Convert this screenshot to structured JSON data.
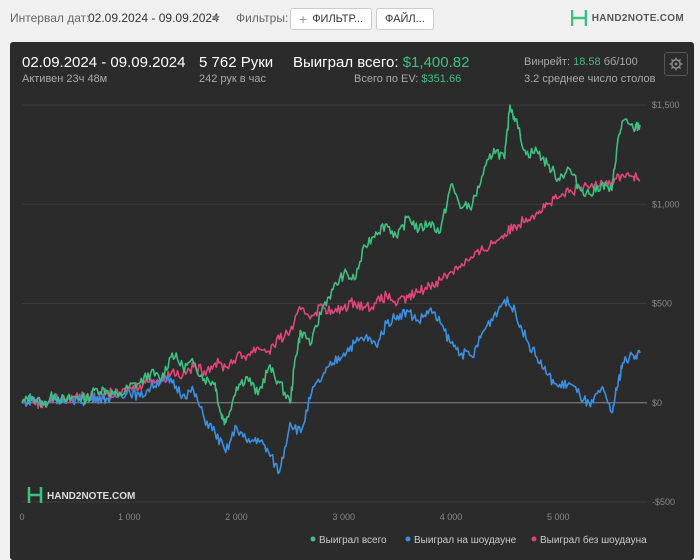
{
  "toolbar": {
    "date_label": "Интервал дат:",
    "date_range": "02.09.2024 - 09.09.2024",
    "filters_label": "Фильтры:",
    "filter_button": "ФИЛЬТР...",
    "file_button": "ФАЙЛ...",
    "brand": "HAND2NOTE.COM"
  },
  "summary": {
    "range": "02.09.2024 - 09.09.2024",
    "active": "Активен 23ч 48м",
    "hands": "5 762 Руки",
    "hands_per_hour": "242 рук в час",
    "won_label": "Выиграл всего:",
    "won_value": "$1,400.82",
    "ev_label": "Всего по EV:",
    "ev_value": "$351.66",
    "winrate_label": "Винрейт:",
    "winrate_value": "18.58",
    "winrate_unit": "бб/100",
    "tables": "3.2 среднее число столов"
  },
  "watermark": "HAND2NOTE.COM",
  "colors": {
    "won": "#3fbf7f",
    "showdown": "#3b8fe0",
    "no_showdown": "#e0457a",
    "panel": "#2b2b2b"
  },
  "chart_data": {
    "type": "line",
    "title": "",
    "xlabel": "",
    "ylabel": "",
    "xlim": [
      0,
      5762
    ],
    "ylim": [
      -500,
      1500
    ],
    "x_ticks": [
      0,
      1000,
      2000,
      3000,
      4000,
      5000
    ],
    "x_tick_labels": [
      "0",
      "1 000",
      "2 000",
      "3 000",
      "4 000",
      "5 000"
    ],
    "y_ticks": [
      -500,
      0,
      500,
      1000,
      1500
    ],
    "y_tick_labels": [
      "-$500",
      "$0",
      "$500",
      "$1,000",
      "$1,500"
    ],
    "legend_position": "bottom-right",
    "grid": true,
    "series": [
      {
        "name": "Выиграл всего",
        "color": "#3fbf7f",
        "points": [
          [
            0,
            0
          ],
          [
            100,
            30
          ],
          [
            200,
            -10
          ],
          [
            300,
            40
          ],
          [
            400,
            10
          ],
          [
            500,
            30
          ],
          [
            600,
            20
          ],
          [
            700,
            70
          ],
          [
            800,
            60
          ],
          [
            900,
            30
          ],
          [
            1000,
            80
          ],
          [
            1100,
            100
          ],
          [
            1200,
            150
          ],
          [
            1300,
            120
          ],
          [
            1400,
            250
          ],
          [
            1500,
            180
          ],
          [
            1600,
            200
          ],
          [
            1700,
            120
          ],
          [
            1800,
            100
          ],
          [
            1850,
            -50
          ],
          [
            1900,
            -100
          ],
          [
            2000,
            80
          ],
          [
            2100,
            130
          ],
          [
            2200,
            40
          ],
          [
            2300,
            180
          ],
          [
            2400,
            100
          ],
          [
            2500,
            0
          ],
          [
            2550,
            230
          ],
          [
            2600,
            360
          ],
          [
            2700,
            300
          ],
          [
            2800,
            480
          ],
          [
            2900,
            570
          ],
          [
            3000,
            650
          ],
          [
            3100,
            620
          ],
          [
            3200,
            790
          ],
          [
            3300,
            860
          ],
          [
            3400,
            900
          ],
          [
            3500,
            830
          ],
          [
            3600,
            940
          ],
          [
            3700,
            870
          ],
          [
            3800,
            910
          ],
          [
            3900,
            860
          ],
          [
            4000,
            1100
          ],
          [
            4100,
            980
          ],
          [
            4200,
            1000
          ],
          [
            4300,
            1150
          ],
          [
            4400,
            1280
          ],
          [
            4500,
            1230
          ],
          [
            4550,
            1500
          ],
          [
            4600,
            1430
          ],
          [
            4700,
            1250
          ],
          [
            4800,
            1270
          ],
          [
            4900,
            1200
          ],
          [
            5000,
            1130
          ],
          [
            5100,
            1180
          ],
          [
            5200,
            1080
          ],
          [
            5300,
            1050
          ],
          [
            5400,
            1100
          ],
          [
            5500,
            1070
          ],
          [
            5550,
            1300
          ],
          [
            5600,
            1420
          ],
          [
            5700,
            1380
          ],
          [
            5762,
            1400
          ]
        ]
      },
      {
        "name": "Выиграл на шоудауне",
        "color": "#3b8fe0",
        "points": [
          [
            0,
            0
          ],
          [
            100,
            20
          ],
          [
            200,
            -10
          ],
          [
            300,
            30
          ],
          [
            400,
            0
          ],
          [
            500,
            20
          ],
          [
            600,
            10
          ],
          [
            700,
            30
          ],
          [
            800,
            20
          ],
          [
            900,
            40
          ],
          [
            1000,
            60
          ],
          [
            1100,
            30
          ],
          [
            1200,
            80
          ],
          [
            1300,
            120
          ],
          [
            1400,
            100
          ],
          [
            1500,
            40
          ],
          [
            1600,
            60
          ],
          [
            1700,
            -80
          ],
          [
            1800,
            -150
          ],
          [
            1900,
            -250
          ],
          [
            2000,
            -120
          ],
          [
            2100,
            -200
          ],
          [
            2200,
            -180
          ],
          [
            2300,
            -250
          ],
          [
            2400,
            -350
          ],
          [
            2500,
            -100
          ],
          [
            2600,
            -150
          ],
          [
            2700,
            50
          ],
          [
            2800,
            130
          ],
          [
            2900,
            200
          ],
          [
            3000,
            250
          ],
          [
            3100,
            300
          ],
          [
            3200,
            330
          ],
          [
            3300,
            290
          ],
          [
            3400,
            400
          ],
          [
            3500,
            440
          ],
          [
            3600,
            460
          ],
          [
            3700,
            410
          ],
          [
            3800,
            470
          ],
          [
            3900,
            400
          ],
          [
            4000,
            300
          ],
          [
            4100,
            250
          ],
          [
            4200,
            230
          ],
          [
            4300,
            360
          ],
          [
            4400,
            440
          ],
          [
            4500,
            520
          ],
          [
            4600,
            460
          ],
          [
            4700,
            320
          ],
          [
            4800,
            230
          ],
          [
            4900,
            140
          ],
          [
            5000,
            80
          ],
          [
            5100,
            100
          ],
          [
            5200,
            40
          ],
          [
            5300,
            -20
          ],
          [
            5400,
            70
          ],
          [
            5500,
            -50
          ],
          [
            5550,
            80
          ],
          [
            5600,
            200
          ],
          [
            5700,
            240
          ],
          [
            5762,
            250
          ]
        ]
      },
      {
        "name": "Выиграл без шоудауна",
        "color": "#e0457a",
        "points": [
          [
            0,
            0
          ],
          [
            100,
            10
          ],
          [
            200,
            -10
          ],
          [
            300,
            20
          ],
          [
            400,
            10
          ],
          [
            500,
            30
          ],
          [
            600,
            40
          ],
          [
            700,
            20
          ],
          [
            800,
            50
          ],
          [
            900,
            40
          ],
          [
            1000,
            70
          ],
          [
            1100,
            90
          ],
          [
            1200,
            120
          ],
          [
            1300,
            110
          ],
          [
            1400,
            160
          ],
          [
            1500,
            140
          ],
          [
            1600,
            180
          ],
          [
            1700,
            160
          ],
          [
            1800,
            200
          ],
          [
            1900,
            180
          ],
          [
            2000,
            230
          ],
          [
            2100,
            240
          ],
          [
            2200,
            280
          ],
          [
            2300,
            260
          ],
          [
            2400,
            320
          ],
          [
            2500,
            360
          ],
          [
            2600,
            470
          ],
          [
            2700,
            440
          ],
          [
            2800,
            490
          ],
          [
            2900,
            450
          ],
          [
            3000,
            480
          ],
          [
            3100,
            510
          ],
          [
            3200,
            480
          ],
          [
            3300,
            500
          ],
          [
            3400,
            540
          ],
          [
            3500,
            500
          ],
          [
            3600,
            530
          ],
          [
            3700,
            560
          ],
          [
            3800,
            590
          ],
          [
            3900,
            620
          ],
          [
            4000,
            660
          ],
          [
            4100,
            700
          ],
          [
            4200,
            730
          ],
          [
            4300,
            770
          ],
          [
            4400,
            810
          ],
          [
            4500,
            850
          ],
          [
            4600,
            890
          ],
          [
            4700,
            930
          ],
          [
            4800,
            960
          ],
          [
            4900,
            1000
          ],
          [
            5000,
            1030
          ],
          [
            5100,
            1060
          ],
          [
            5200,
            1080
          ],
          [
            5300,
            1090
          ],
          [
            5400,
            1120
          ],
          [
            5500,
            1110
          ],
          [
            5600,
            1150
          ],
          [
            5700,
            1140
          ],
          [
            5762,
            1120
          ]
        ]
      }
    ]
  }
}
